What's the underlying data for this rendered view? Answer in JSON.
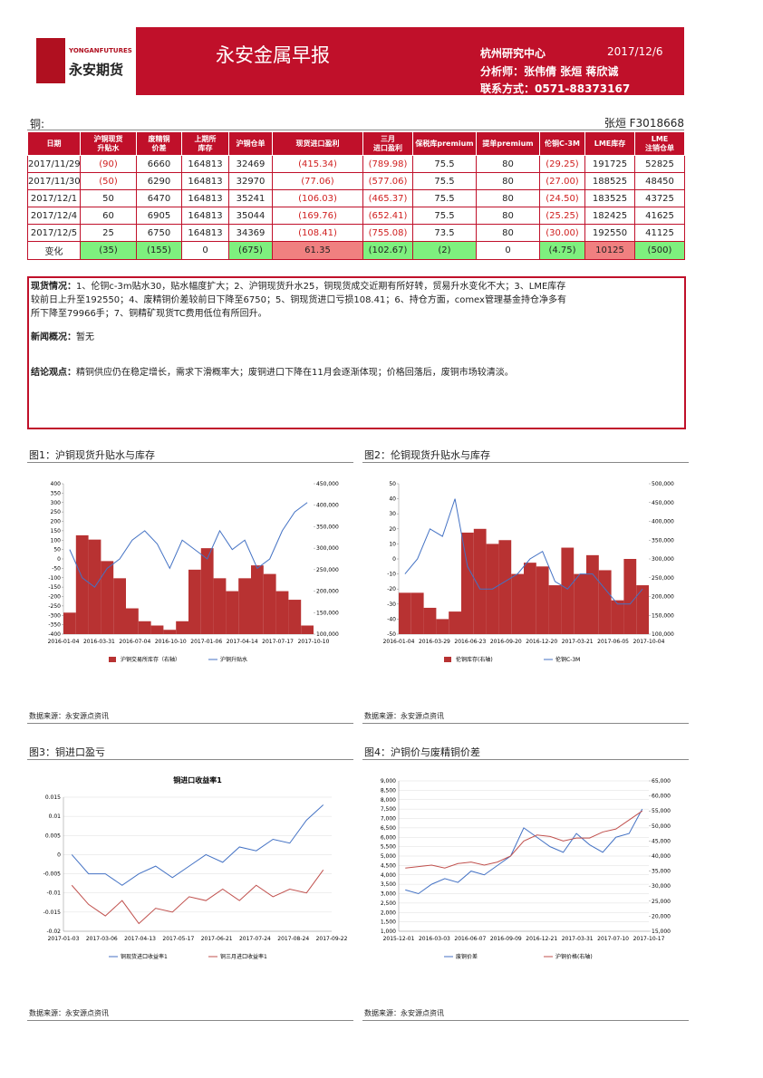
{
  "header": {
    "brand_en": "YONGANFUTURES",
    "brand_cn": "永安期货",
    "title": "永安金属早报",
    "center": "杭州研究中心",
    "date": "2017/12/6",
    "analysts": "分析师：张伟倩 张烜 蒋欣诚",
    "contact": "联系方式：0571-88373167"
  },
  "section": {
    "name": "铜:",
    "author": "张烜 F3018668"
  },
  "table": {
    "columns": [
      [
        "日期"
      ],
      [
        "沪铜现货",
        "升贴水"
      ],
      [
        "废精铜",
        "价差"
      ],
      [
        "上期所",
        "库存"
      ],
      [
        "沪铜仓单"
      ],
      [
        "现货进口盈利"
      ],
      [
        "三月",
        "进口盈利"
      ],
      [
        "保税库premium"
      ],
      [
        "提单premium"
      ],
      [
        "伦铜C-3M"
      ],
      [
        "LME库存"
      ],
      [
        "LME",
        "注销仓单"
      ]
    ],
    "rows": [
      [
        "2017/11/29",
        "(90)",
        "6660",
        "164813",
        "32469",
        "(415.34)",
        "(789.98)",
        "75.5",
        "80",
        "(29.25)",
        "191725",
        "52825"
      ],
      [
        "2017/11/30",
        "(50)",
        "6290",
        "164813",
        "32970",
        "(77.06)",
        "(577.06)",
        "75.5",
        "80",
        "(27.00)",
        "188525",
        "48450"
      ],
      [
        "2017/12/1",
        "50",
        "6470",
        "164813",
        "35241",
        "(106.03)",
        "(465.37)",
        "75.5",
        "80",
        "(24.50)",
        "183525",
        "43725"
      ],
      [
        "2017/12/4",
        "60",
        "6905",
        "164813",
        "35044",
        "(169.76)",
        "(652.41)",
        "75.5",
        "80",
        "(25.25)",
        "182425",
        "41625"
      ],
      [
        "2017/12/5",
        "25",
        "6750",
        "164813",
        "34369",
        "(108.41)",
        "(755.08)",
        "73.5",
        "80",
        "(30.00)",
        "192550",
        "41125"
      ]
    ],
    "change": [
      "变化",
      "(35)",
      "(155)",
      "0",
      "(675)",
      "61.35",
      "(102.67)",
      "(2)",
      "0",
      "(4.75)",
      "10125",
      "(500)"
    ]
  },
  "commentary": [
    {
      "label": "现货情况：",
      "text": "1、伦铜c-3m贴水30，贴水幅度扩大；2、沪铜现货升水25，铜现货成交近期有所好转，贸易升水变化不大；3、LME库存较前日上升至192550；4、废精铜价差较前日下降至6750；5、铜现货进口亏损108.41；6、持仓方面，comex管理基金持仓净多有所下降至79966手；7、铜精矿现货TC费用低位有所回升。"
    },
    {
      "label": "新闻概况：",
      "text": "暂无"
    },
    {
      "label": "结论观点：",
      "text": "精铜供应仍在稳定增长，需求下滑概率大；废铜进口下降在11月会逐渐体现；价格回落后，废铜市场较清淡。"
    }
  ],
  "figures": [
    {
      "caption": "图1：沪铜现货升贴水与库存",
      "source": "数据来源：永安源点资讯",
      "chart": {
        "type": "combo",
        "grid": false,
        "ylim": [
          -400,
          400
        ],
        "yticks": [
          400,
          350,
          300,
          250,
          200,
          150,
          100,
          50,
          0,
          -50,
          -100,
          -150,
          -200,
          -250,
          -300,
          -350,
          -400
        ],
        "y2lim": [
          100000,
          450000
        ],
        "y2ticks": [
          {
            "value": 450000,
            "label": "450,000"
          },
          {
            "value": 400000,
            "label": "400,000"
          },
          {
            "value": 350000,
            "label": "350,000"
          },
          {
            "value": 300000,
            "label": "300,000"
          },
          {
            "value": 250000,
            "label": "250,000"
          },
          {
            "value": 200000,
            "label": "200,000"
          },
          {
            "value": 150000,
            "label": "150,000"
          },
          {
            "value": 100000,
            "label": "100,000"
          }
        ],
        "x_labels": [
          "2016-01-04",
          "2016-03-31",
          "2016-07-04",
          "2016-10-10",
          "2017-01-06",
          "2017-04-14",
          "2017-07-17",
          "2017-10-10"
        ],
        "series": [
          {
            "name": "沪铜交易所库存（右轴）",
            "type": "bar",
            "axis": "y2",
            "color": "#b83232",
            "values": [
              150000,
              330000,
              320000,
              270000,
              230000,
              160000,
              130000,
              120000,
              110000,
              130000,
              250000,
              300000,
              230000,
              200000,
              230000,
              260000,
              240000,
              200000,
              180000,
              120000
            ]
          },
          {
            "name": "沪铜升贴水",
            "type": "line",
            "color": "#4472c4",
            "values": [
              50,
              -100,
              -150,
              -50,
              0,
              100,
              150,
              80,
              -50,
              100,
              50,
              0,
              150,
              50,
              100,
              -50,
              0,
              150,
              250,
              300
            ]
          }
        ]
      }
    },
    {
      "caption": "图2：伦铜现货升贴水与库存",
      "source": "数据来源：永安源点资讯",
      "chart": {
        "type": "combo",
        "grid": false,
        "ylim": [
          -50,
          50
        ],
        "yticks": [
          50,
          40,
          30,
          20,
          10,
          0,
          -10,
          -20,
          -30,
          -40,
          -50
        ],
        "y2lim": [
          100000,
          500000
        ],
        "y2ticks": [
          {
            "value": 500000,
            "label": "500,000"
          },
          {
            "value": 450000,
            "label": "450,000"
          },
          {
            "value": 400000,
            "label": "400,000"
          },
          {
            "value": 350000,
            "label": "350,000"
          },
          {
            "value": 300000,
            "label": "300,000"
          },
          {
            "value": 250000,
            "label": "250,000"
          },
          {
            "value": 200000,
            "label": "200,000"
          },
          {
            "value": 150000,
            "label": "150,000"
          },
          {
            "value": 100000,
            "label": "100,000"
          }
        ],
        "x_labels": [
          "2016-01-04",
          "2016-03-29",
          "2016-06-23",
          "2016-09-20",
          "2016-12-20",
          "2017-03-21",
          "2017-06-05",
          "2017-10-04"
        ],
        "series": [
          {
            "name": "伦铜库存(右轴)",
            "type": "bar",
            "axis": "y2",
            "color": "#b83232",
            "values": [
              210000,
              210000,
              170000,
              140000,
              160000,
              370000,
              380000,
              340000,
              350000,
              260000,
              290000,
              280000,
              230000,
              330000,
              260000,
              310000,
              270000,
              190000,
              300000,
              230000
            ]
          },
          {
            "name": "伦铜C-3M",
            "type": "line",
            "color": "#4472c4",
            "values": [
              -10,
              0,
              20,
              15,
              40,
              -5,
              -20,
              -20,
              -15,
              -10,
              0,
              5,
              -15,
              -20,
              -10,
              -10,
              -20,
              -30,
              -30,
              -20
            ]
          }
        ]
      }
    },
    {
      "caption": "图3：铜进口盈亏",
      "source": "数据来源：永安源点资讯",
      "chart": {
        "type": "line",
        "title": "铜进口收益率1",
        "grid": true,
        "ylim": [
          -0.02,
          0.015
        ],
        "yticks": [
          0.015,
          0.01,
          0.005,
          0,
          -0.005,
          -0.01,
          -0.015,
          -0.02
        ],
        "x_labels": [
          "2017-01-03",
          "2017-03-06",
          "2017-04-13",
          "2017-05-17",
          "2017-06-21",
          "2017-07-24",
          "2017-08-24",
          "2017-09-22"
        ],
        "series": [
          {
            "name": "铜现货进口收益率1",
            "type": "line",
            "color": "#4472c4",
            "values": [
              0,
              -0.005,
              -0.005,
              -0.008,
              -0.005,
              -0.003,
              -0.006,
              -0.003,
              0,
              -0.002,
              0.002,
              0.001,
              0.004,
              0.003,
              0.009,
              0.013
            ]
          },
          {
            "name": "铜三月进口收益率1",
            "type": "line",
            "color": "#c0504d",
            "values": [
              -0.008,
              -0.013,
              -0.016,
              -0.012,
              -0.018,
              -0.014,
              -0.015,
              -0.011,
              -0.012,
              -0.009,
              -0.012,
              -0.008,
              -0.011,
              -0.009,
              -0.01,
              -0.004
            ]
          }
        ]
      }
    },
    {
      "caption": "图4：沪铜价与废精铜价差",
      "source": "数据来源：永安源点资讯",
      "chart": {
        "type": "line",
        "grid": true,
        "ylim": [
          1000,
          9000
        ],
        "yticks": [
          {
            "value": 9000,
            "label": "9,000"
          },
          {
            "value": 8500,
            "label": "8,500"
          },
          {
            "value": 8000,
            "label": "8,000"
          },
          {
            "value": 7500,
            "label": "7,500"
          },
          {
            "value": 7000,
            "label": "7,000"
          },
          {
            "value": 6500,
            "label": "6,500"
          },
          {
            "value": 6000,
            "label": "6,000"
          },
          {
            "value": 5500,
            "label": "5,500"
          },
          {
            "value": 5000,
            "label": "5,000"
          },
          {
            "value": 4500,
            "label": "4,500"
          },
          {
            "value": 4000,
            "label": "4,000"
          },
          {
            "value": 3500,
            "label": "3,500"
          },
          {
            "value": 3000,
            "label": "3,000"
          },
          {
            "value": 2500,
            "label": "2,500"
          },
          {
            "value": 2000,
            "label": "2,000"
          },
          {
            "value": 1500,
            "label": "1,500"
          },
          {
            "value": 1000,
            "label": "1,000"
          }
        ],
        "y2lim": [
          15000,
          65000
        ],
        "y2ticks": [
          {
            "value": 65000,
            "label": "65,000"
          },
          {
            "value": 60000,
            "label": "60,000"
          },
          {
            "value": 55000,
            "label": "55,000"
          },
          {
            "value": 50000,
            "label": "50,000"
          },
          {
            "value": 45000,
            "label": "45,000"
          },
          {
            "value": 40000,
            "label": "40,000"
          },
          {
            "value": 35000,
            "label": "35,000"
          },
          {
            "value": 30000,
            "label": "30,000"
          },
          {
            "value": 25000,
            "label": "25,000"
          },
          {
            "value": 20000,
            "label": "20,000"
          },
          {
            "value": 15000,
            "label": "15,000"
          }
        ],
        "x_labels": [
          "2015-12-01",
          "2016-03-03",
          "2016-06-07",
          "2016-09-09",
          "2016-12-21",
          "2017-03-31",
          "2017-07-10",
          "2017-10-17"
        ],
        "series": [
          {
            "name": "废铜价差",
            "type": "line",
            "color": "#4472c4",
            "values": [
              3200,
              3000,
              3500,
              3800,
              3600,
              4200,
              4000,
              4500,
              5000,
              6500,
              6000,
              5500,
              5200,
              6200,
              5600,
              5200,
              6000,
              6200,
              7500
            ]
          },
          {
            "name": "沪铜价格(右轴)",
            "type": "line",
            "axis": "y2",
            "color": "#c0504d",
            "values": [
              36000,
              36500,
              37000,
              36000,
              37500,
              38000,
              37000,
              38000,
              40000,
              45000,
              47000,
              46500,
              45000,
              46000,
              46000,
              48000,
              49000,
              52000,
              55000
            ]
          }
        ]
      }
    }
  ]
}
